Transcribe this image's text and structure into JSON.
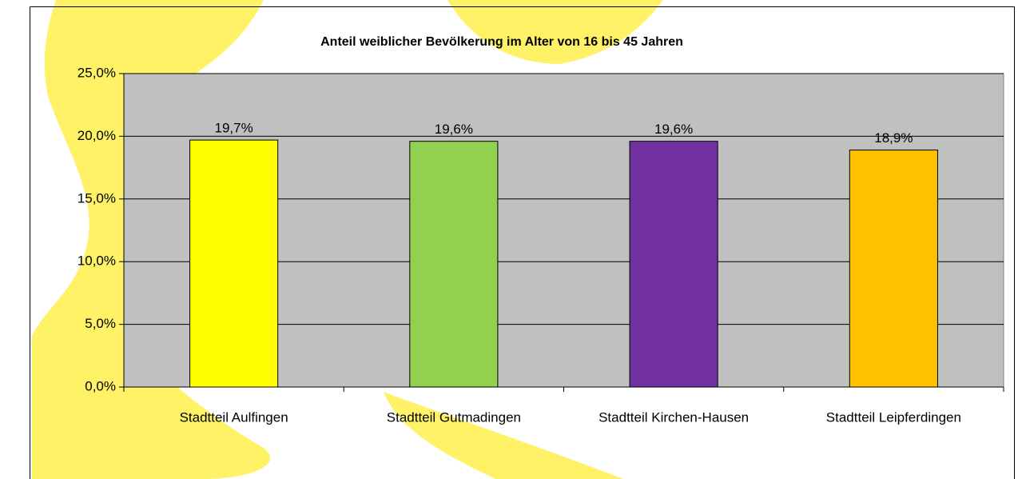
{
  "chart_data": {
    "type": "bar",
    "title": "Anteil weiblicher Bevölkerung im Alter von 16 bis 45 Jahren",
    "categories": [
      "Stadtteil Aulfingen",
      "Stadtteil Gutmadingen",
      "Stadtteil Kirchen-Hausen",
      "Stadtteil Leipferdingen"
    ],
    "values": [
      19.7,
      19.6,
      19.6,
      18.9
    ],
    "value_labels": [
      "19,7%",
      "19,6%",
      "19,6%",
      "18,9%"
    ],
    "colors": [
      "#ffff00",
      "#92d050",
      "#7030a0",
      "#ffc000"
    ],
    "ylim": [
      0,
      25
    ],
    "yticks": [
      {
        "value": 0,
        "label": "0,0%"
      },
      {
        "value": 5,
        "label": "5,0%"
      },
      {
        "value": 10,
        "label": "10,0%"
      },
      {
        "value": 15,
        "label": "15,0%"
      },
      {
        "value": 20,
        "label": "20,0%"
      },
      {
        "value": 25,
        "label": "25,0%"
      }
    ],
    "grid": true
  }
}
